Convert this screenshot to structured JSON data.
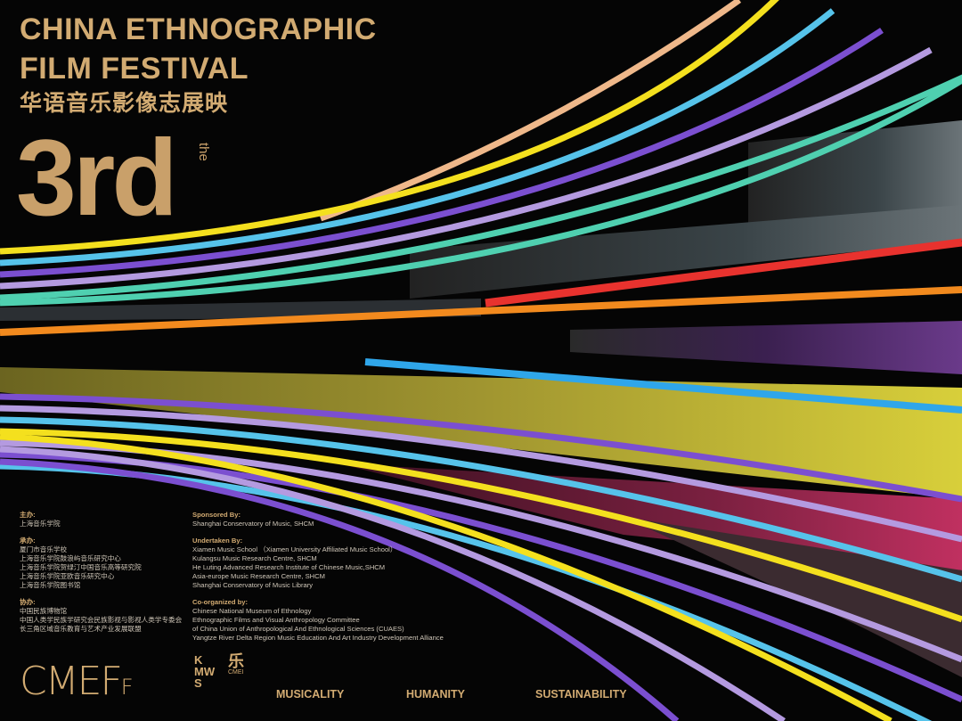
{
  "title_line1": "CHINA ETHNOGRAPHIC",
  "title_line2": "FILM FESTIVAL",
  "title_cn": "华语音乐影像志展映",
  "edition": "3rd",
  "edition_prefix": "the",
  "credits_cn": {
    "host_label": "主办:",
    "host": [
      "上海音乐学院"
    ],
    "undertaker_label": "承办:",
    "undertakers": [
      "厦门市音乐学校",
      "上海音乐学院鼓浪屿音乐研究中心",
      "上海音乐学院贺绿汀中国音乐高等研究院",
      "上海音乐学院亚欧音乐研究中心",
      "上海音乐学院图书馆"
    ],
    "coorganizer_label": "协办:",
    "coorganizers": [
      "中国民族博物馆",
      "中国人类学民族学研究会民族影视与影视人类学专委会",
      "长三角区域音乐教育与艺术产业发展联盟"
    ]
  },
  "credits_en": {
    "sponsor_label": "Sponsored By:",
    "sponsors": [
      "Shanghai Conservatory of Music, SHCM"
    ],
    "undertaker_label": "Undertaken By:",
    "undertakers": [
      "Xiamen Music School （Xiamen University Affiliated Music School）",
      "Kulangsu Music Research Centre, SHCM",
      "He Luting Advanced Research Institute of Chinese Music,SHCM",
      "Asia-europe Music Research Centre, SHCM",
      "Shanghai Conservatory of Music Library"
    ],
    "coorganizer_label": "Co-organized by:",
    "coorganizers": [
      "Chinese National Museum of Ethnology",
      "Ethnographic Films and Visual Anthropology Committee",
      "of China Union of Anthropological And Ethnological Sciences (CUAES)",
      "Yangtze River Delta Region Music Education And Art Industry Development Alliance"
    ]
  },
  "logos": {
    "cmeff": "CMEFF",
    "kmws": "KMWS",
    "le": "乐",
    "le_sub": "CMEI"
  },
  "taglines": [
    "MUSICALITY",
    "HUMANITY",
    "SUSTAINABILITY"
  ],
  "colors": {
    "gold": "#d2ab72",
    "yellow": "#f4e01e",
    "cyan": "#56c3ea",
    "purple": "#7b4fd0",
    "lavender": "#b49ae0",
    "teal": "#4fd0b0",
    "peach": "#efb88a",
    "red": "#e8322e",
    "orange": "#f28a1e",
    "blue": "#2fa6ea"
  }
}
